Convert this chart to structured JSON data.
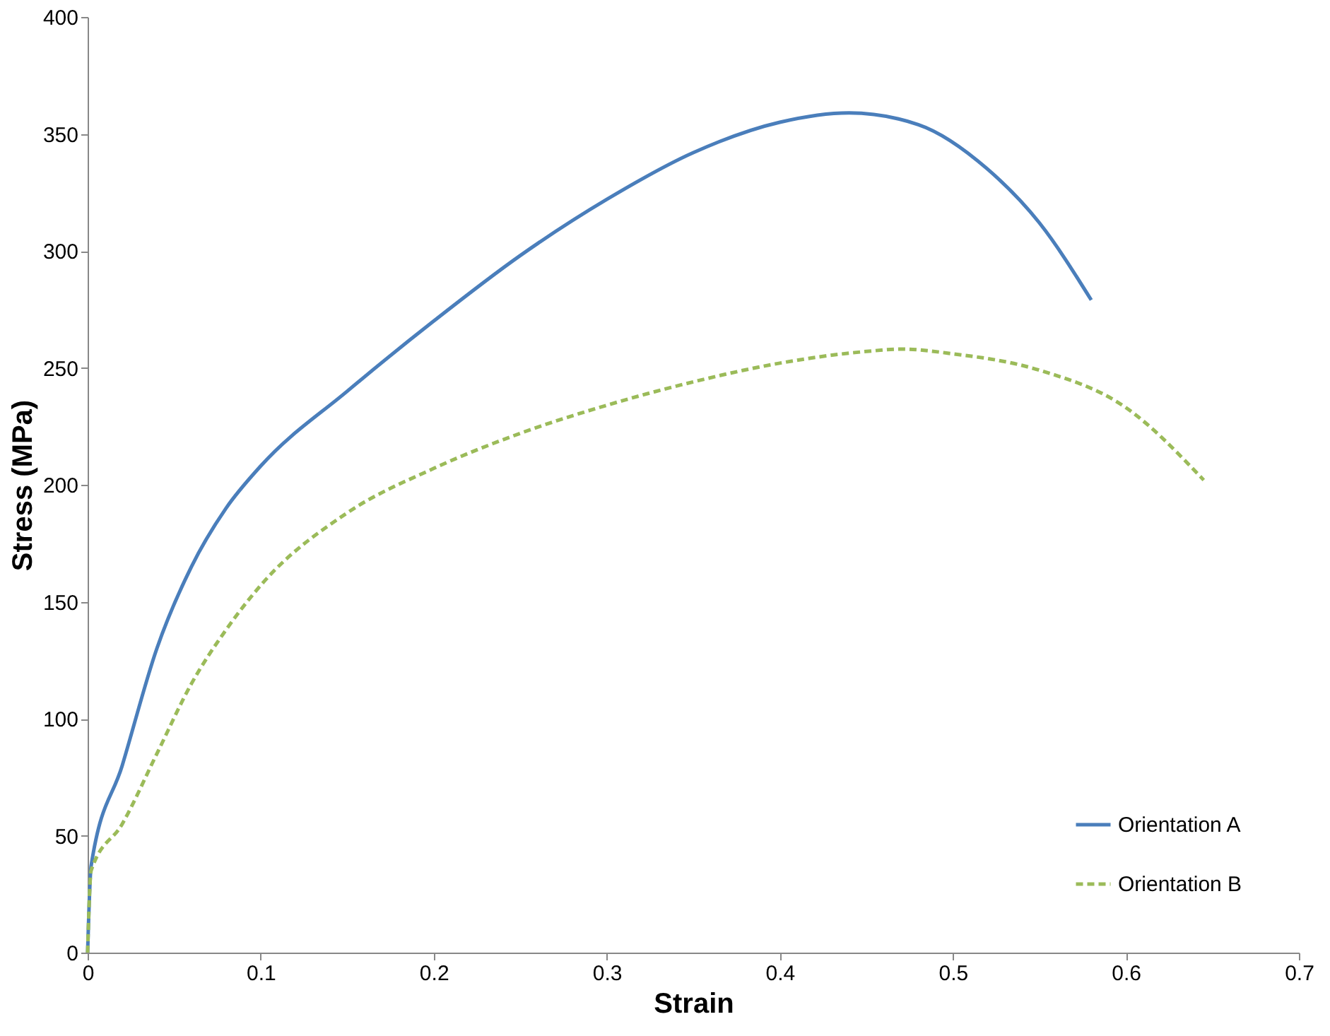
{
  "chart_data": {
    "type": "line",
    "xlabel": "Strain",
    "ylabel": "Stress (MPa)",
    "xlim": [
      0,
      0.7
    ],
    "xticks": [
      0,
      0.1,
      0.2,
      0.3,
      0.4,
      0.5,
      0.6,
      0.7
    ],
    "ylim": [
      0,
      400
    ],
    "yticks": [
      0,
      50,
      100,
      150,
      200,
      250,
      300,
      350,
      400
    ],
    "grid": false,
    "legend": "bottom right",
    "marker": "none",
    "series": [
      {
        "name": "Orientation A",
        "color": "#4a7ebb",
        "line_style": "solid",
        "x": [
          0,
          0.002,
          0.02,
          0.04,
          0.06,
          0.08,
          0.1,
          0.15,
          0.2,
          0.25,
          0.3,
          0.35,
          0.4,
          0.44,
          0.48,
          0.52,
          0.55,
          0.58
        ],
        "values": [
          0,
          37,
          80,
          130,
          165,
          190,
          208,
          240,
          270,
          298,
          322,
          342,
          355,
          359,
          354,
          335,
          312,
          279
        ]
      },
      {
        "name": "Orientation B",
        "color": "#9bbb59",
        "line_style": "dashed",
        "x": [
          0,
          0.002,
          0.02,
          0.04,
          0.06,
          0.08,
          0.1,
          0.15,
          0.2,
          0.25,
          0.3,
          0.35,
          0.4,
          0.45,
          0.47,
          0.5,
          0.55,
          0.6,
          0.645
        ],
        "values": [
          0,
          35,
          55,
          85,
          115,
          138,
          157,
          188,
          207,
          222,
          234,
          244,
          252,
          257,
          258,
          256,
          249,
          233,
          202
        ]
      }
    ]
  }
}
